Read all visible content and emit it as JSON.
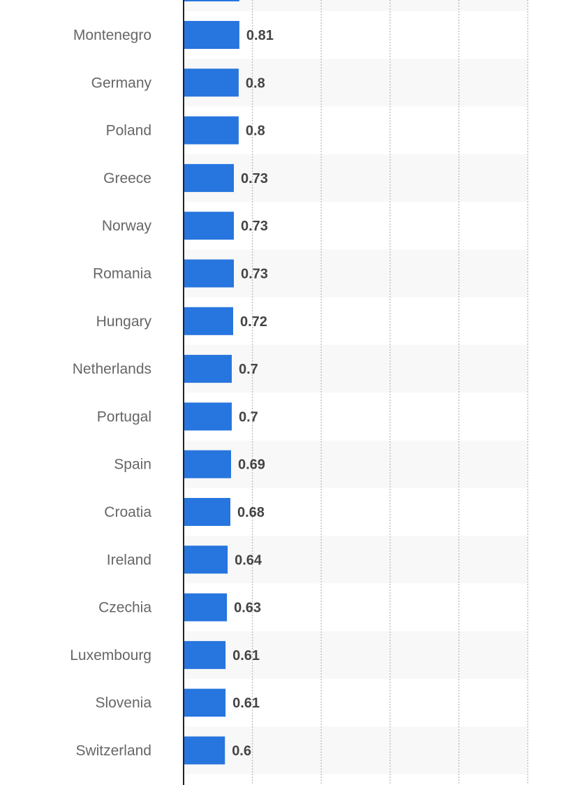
{
  "chart_data": {
    "type": "bar",
    "orientation": "horizontal",
    "categories": [
      "Montenegro",
      "Germany",
      "Poland",
      "Greece",
      "Norway",
      "Romania",
      "Hungary",
      "Netherlands",
      "Portugal",
      "Spain",
      "Croatia",
      "Ireland",
      "Czechia",
      "Luxembourg",
      "Slovenia",
      "Switzerland"
    ],
    "values": [
      0.81,
      0.8,
      0.8,
      0.73,
      0.73,
      0.73,
      0.72,
      0.7,
      0.7,
      0.69,
      0.68,
      0.64,
      0.63,
      0.61,
      0.61,
      0.6
    ],
    "value_labels": [
      "0.81",
      "0.8",
      "0.8",
      "0.73",
      "0.73",
      "0.73",
      "0.72",
      "0.7",
      "0.7",
      "0.69",
      "0.68",
      "0.64",
      "0.63",
      "0.61",
      "0.61",
      "0.6"
    ],
    "title": "",
    "xlabel": "",
    "ylabel": "",
    "xlim": [
      0,
      5
    ],
    "grid": true,
    "legend": "none",
    "bar_color": "#2775de",
    "band_color": "#f8f8f8",
    "truncated_top_bar": true
  }
}
